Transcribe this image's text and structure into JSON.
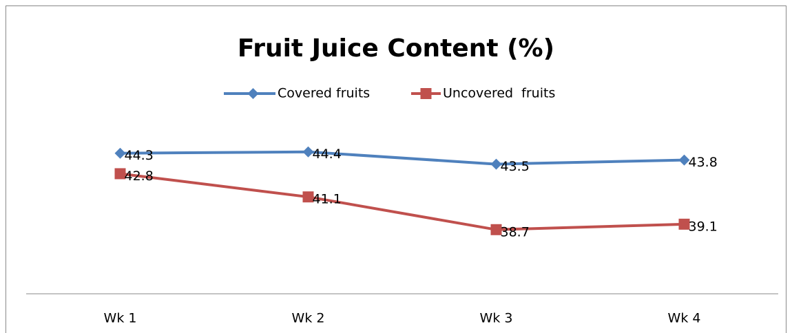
{
  "chart_data": {
    "type": "line",
    "title": "Fruit Juice Content (%)",
    "categories": [
      "Wk 1",
      "Wk 2",
      "Wk 3",
      "Wk 4"
    ],
    "series": [
      {
        "name": "Covered fruits",
        "color": "#4f81bd",
        "values": [
          44.3,
          44.4,
          43.5,
          43.8
        ]
      },
      {
        "name": "Uncovered  fruits",
        "color": "#c0504d",
        "values": [
          42.8,
          41.1,
          38.7,
          39.1
        ]
      }
    ],
    "ylim": [
      34,
      46
    ],
    "legend": "top",
    "grid": false
  }
}
